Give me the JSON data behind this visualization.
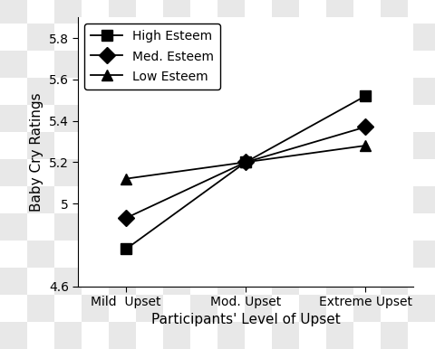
{
  "x_labels": [
    "Mild  Upset",
    "Mod. Upset",
    "Extreme Upset"
  ],
  "x_positions": [
    0,
    1,
    2
  ],
  "series": [
    {
      "label": "High Esteem",
      "values": [
        4.78,
        5.2,
        5.52
      ],
      "marker": "s",
      "color": "#000000",
      "markersize": 9
    },
    {
      "label": "Med. Esteem",
      "values": [
        4.93,
        5.2,
        5.37
      ],
      "marker": "D",
      "color": "#000000",
      "markersize": 9
    },
    {
      "label": "Low Esteem",
      "values": [
        5.12,
        5.2,
        5.28
      ],
      "marker": "^",
      "color": "#000000",
      "markersize": 9
    }
  ],
  "ylabel": "Baby Cry Ratings",
  "xlabel": "Participants' Level of Upset",
  "ylim": [
    4.6,
    5.9
  ],
  "yticks": [
    4.6,
    5.0,
    5.2,
    5.4,
    5.6,
    5.8
  ],
  "ytick_labels": [
    "4.6",
    "5",
    "5.2",
    "5.4",
    "5.6",
    "5.8"
  ],
  "plot_bg": "#ffffff",
  "checker_light": "#e8e8e8",
  "checker_dark": "#ffffff",
  "legend_loc": "upper left",
  "linewidth": 1.3,
  "title_fontsize": 11,
  "axis_fontsize": 11,
  "tick_fontsize": 10,
  "legend_fontsize": 10
}
